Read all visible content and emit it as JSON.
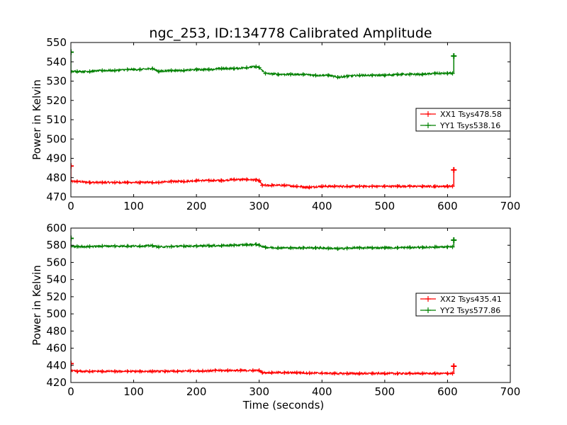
{
  "figure": {
    "title": "ngc_253, ID:134778 Calibrated Amplitude"
  },
  "chart_data": [
    {
      "type": "line",
      "title": "ngc_253, ID:134778 Calibrated Amplitude",
      "xlabel": "",
      "ylabel": "Power in Kelvin",
      "xlim": [
        0,
        700
      ],
      "ylim": [
        470,
        550
      ],
      "xticks": [
        0,
        100,
        200,
        300,
        400,
        500,
        600,
        700
      ],
      "yticks": [
        470,
        480,
        490,
        500,
        510,
        520,
        530,
        540,
        550
      ],
      "grid": false,
      "legend_position": "center-right",
      "series": [
        {
          "name": "XX1 Tsys478.58",
          "color": "#ff0000",
          "marker": "+",
          "x": [
            0,
            10,
            30,
            50,
            70,
            90,
            110,
            130,
            140,
            160,
            180,
            200,
            220,
            240,
            260,
            280,
            295,
            300,
            305,
            320,
            340,
            360,
            380,
            400,
            420,
            440,
            460,
            480,
            500,
            520,
            540,
            560,
            580,
            600,
            608
          ],
          "y": [
            478,
            478,
            477.5,
            477.5,
            477.5,
            477.5,
            477.5,
            477.5,
            477.5,
            478,
            478,
            478.5,
            478.5,
            478.5,
            479,
            479,
            478.8,
            478.5,
            476,
            476,
            476,
            475.5,
            475,
            475.5,
            475.5,
            475.5,
            475.5,
            475.5,
            475.5,
            475.5,
            475.5,
            475.5,
            475.5,
            475.5,
            475.5
          ],
          "spikes": [
            {
              "x": 0,
              "y": 486
            },
            {
              "x": 610,
              "y": 484
            }
          ]
        },
        {
          "name": "YY1 Tsys538.16",
          "color": "#008000",
          "marker": "+",
          "x": [
            0,
            10,
            30,
            50,
            70,
            90,
            110,
            130,
            140,
            160,
            180,
            200,
            220,
            240,
            260,
            280,
            295,
            300,
            310,
            330,
            350,
            370,
            390,
            410,
            425,
            440,
            460,
            480,
            500,
            520,
            540,
            560,
            580,
            600,
            608
          ],
          "y": [
            535,
            535,
            535,
            535.5,
            535.5,
            536,
            536,
            536.5,
            535,
            535.5,
            535.5,
            536,
            536,
            536.5,
            536.5,
            537,
            537.5,
            537,
            534,
            533.5,
            533.5,
            533.5,
            533,
            533,
            532,
            532.5,
            533,
            533,
            533,
            533.5,
            533.5,
            533.5,
            534,
            534,
            534
          ],
          "spikes": [
            {
              "x": 0,
              "y": 545
            },
            {
              "x": 610,
              "y": 543
            }
          ]
        }
      ]
    },
    {
      "type": "line",
      "title": "",
      "xlabel": "Time (seconds)",
      "ylabel": "Power in Kelvin",
      "xlim": [
        0,
        700
      ],
      "ylim": [
        420,
        600
      ],
      "xticks": [
        0,
        100,
        200,
        300,
        400,
        500,
        600,
        700
      ],
      "yticks": [
        420,
        440,
        460,
        480,
        500,
        520,
        540,
        560,
        580,
        600
      ],
      "grid": false,
      "legend_position": "center-right",
      "series": [
        {
          "name": "XX2 Tsys435.41",
          "color": "#ff0000",
          "marker": "+",
          "x": [
            0,
            10,
            30,
            50,
            70,
            90,
            110,
            130,
            150,
            170,
            190,
            210,
            230,
            250,
            270,
            290,
            300,
            305,
            320,
            340,
            360,
            380,
            400,
            420,
            440,
            460,
            480,
            500,
            520,
            540,
            560,
            580,
            600,
            608
          ],
          "y": [
            433.5,
            433,
            433,
            433,
            433,
            433,
            433,
            433,
            433,
            433,
            433.5,
            433.5,
            434,
            434,
            434,
            434,
            434,
            431.5,
            431.5,
            431.5,
            431.5,
            431,
            431,
            430.5,
            430.5,
            430.5,
            430.5,
            430.5,
            430.5,
            430.5,
            430.5,
            430.5,
            430.5,
            430.5
          ],
          "spikes": [
            {
              "x": 0,
              "y": 442
            },
            {
              "x": 610,
              "y": 439
            }
          ]
        },
        {
          "name": "YY2 Tsys577.86",
          "color": "#008000",
          "marker": "+",
          "x": [
            0,
            10,
            30,
            50,
            70,
            90,
            110,
            130,
            140,
            160,
            180,
            200,
            220,
            240,
            260,
            280,
            295,
            300,
            310,
            330,
            350,
            370,
            390,
            410,
            425,
            440,
            460,
            480,
            500,
            520,
            540,
            560,
            580,
            600,
            608
          ],
          "y": [
            578.5,
            578.5,
            578.5,
            579,
            579,
            579,
            579,
            579.5,
            578,
            578.5,
            579,
            579,
            579.5,
            579.5,
            580,
            580.5,
            581,
            580,
            577.5,
            577,
            577,
            577,
            577,
            576.5,
            576,
            576.5,
            577,
            577,
            577,
            577,
            577.5,
            577.5,
            578,
            578,
            578
          ],
          "spikes": [
            {
              "x": 0,
              "y": 588
            },
            {
              "x": 610,
              "y": 586
            }
          ]
        }
      ]
    }
  ]
}
